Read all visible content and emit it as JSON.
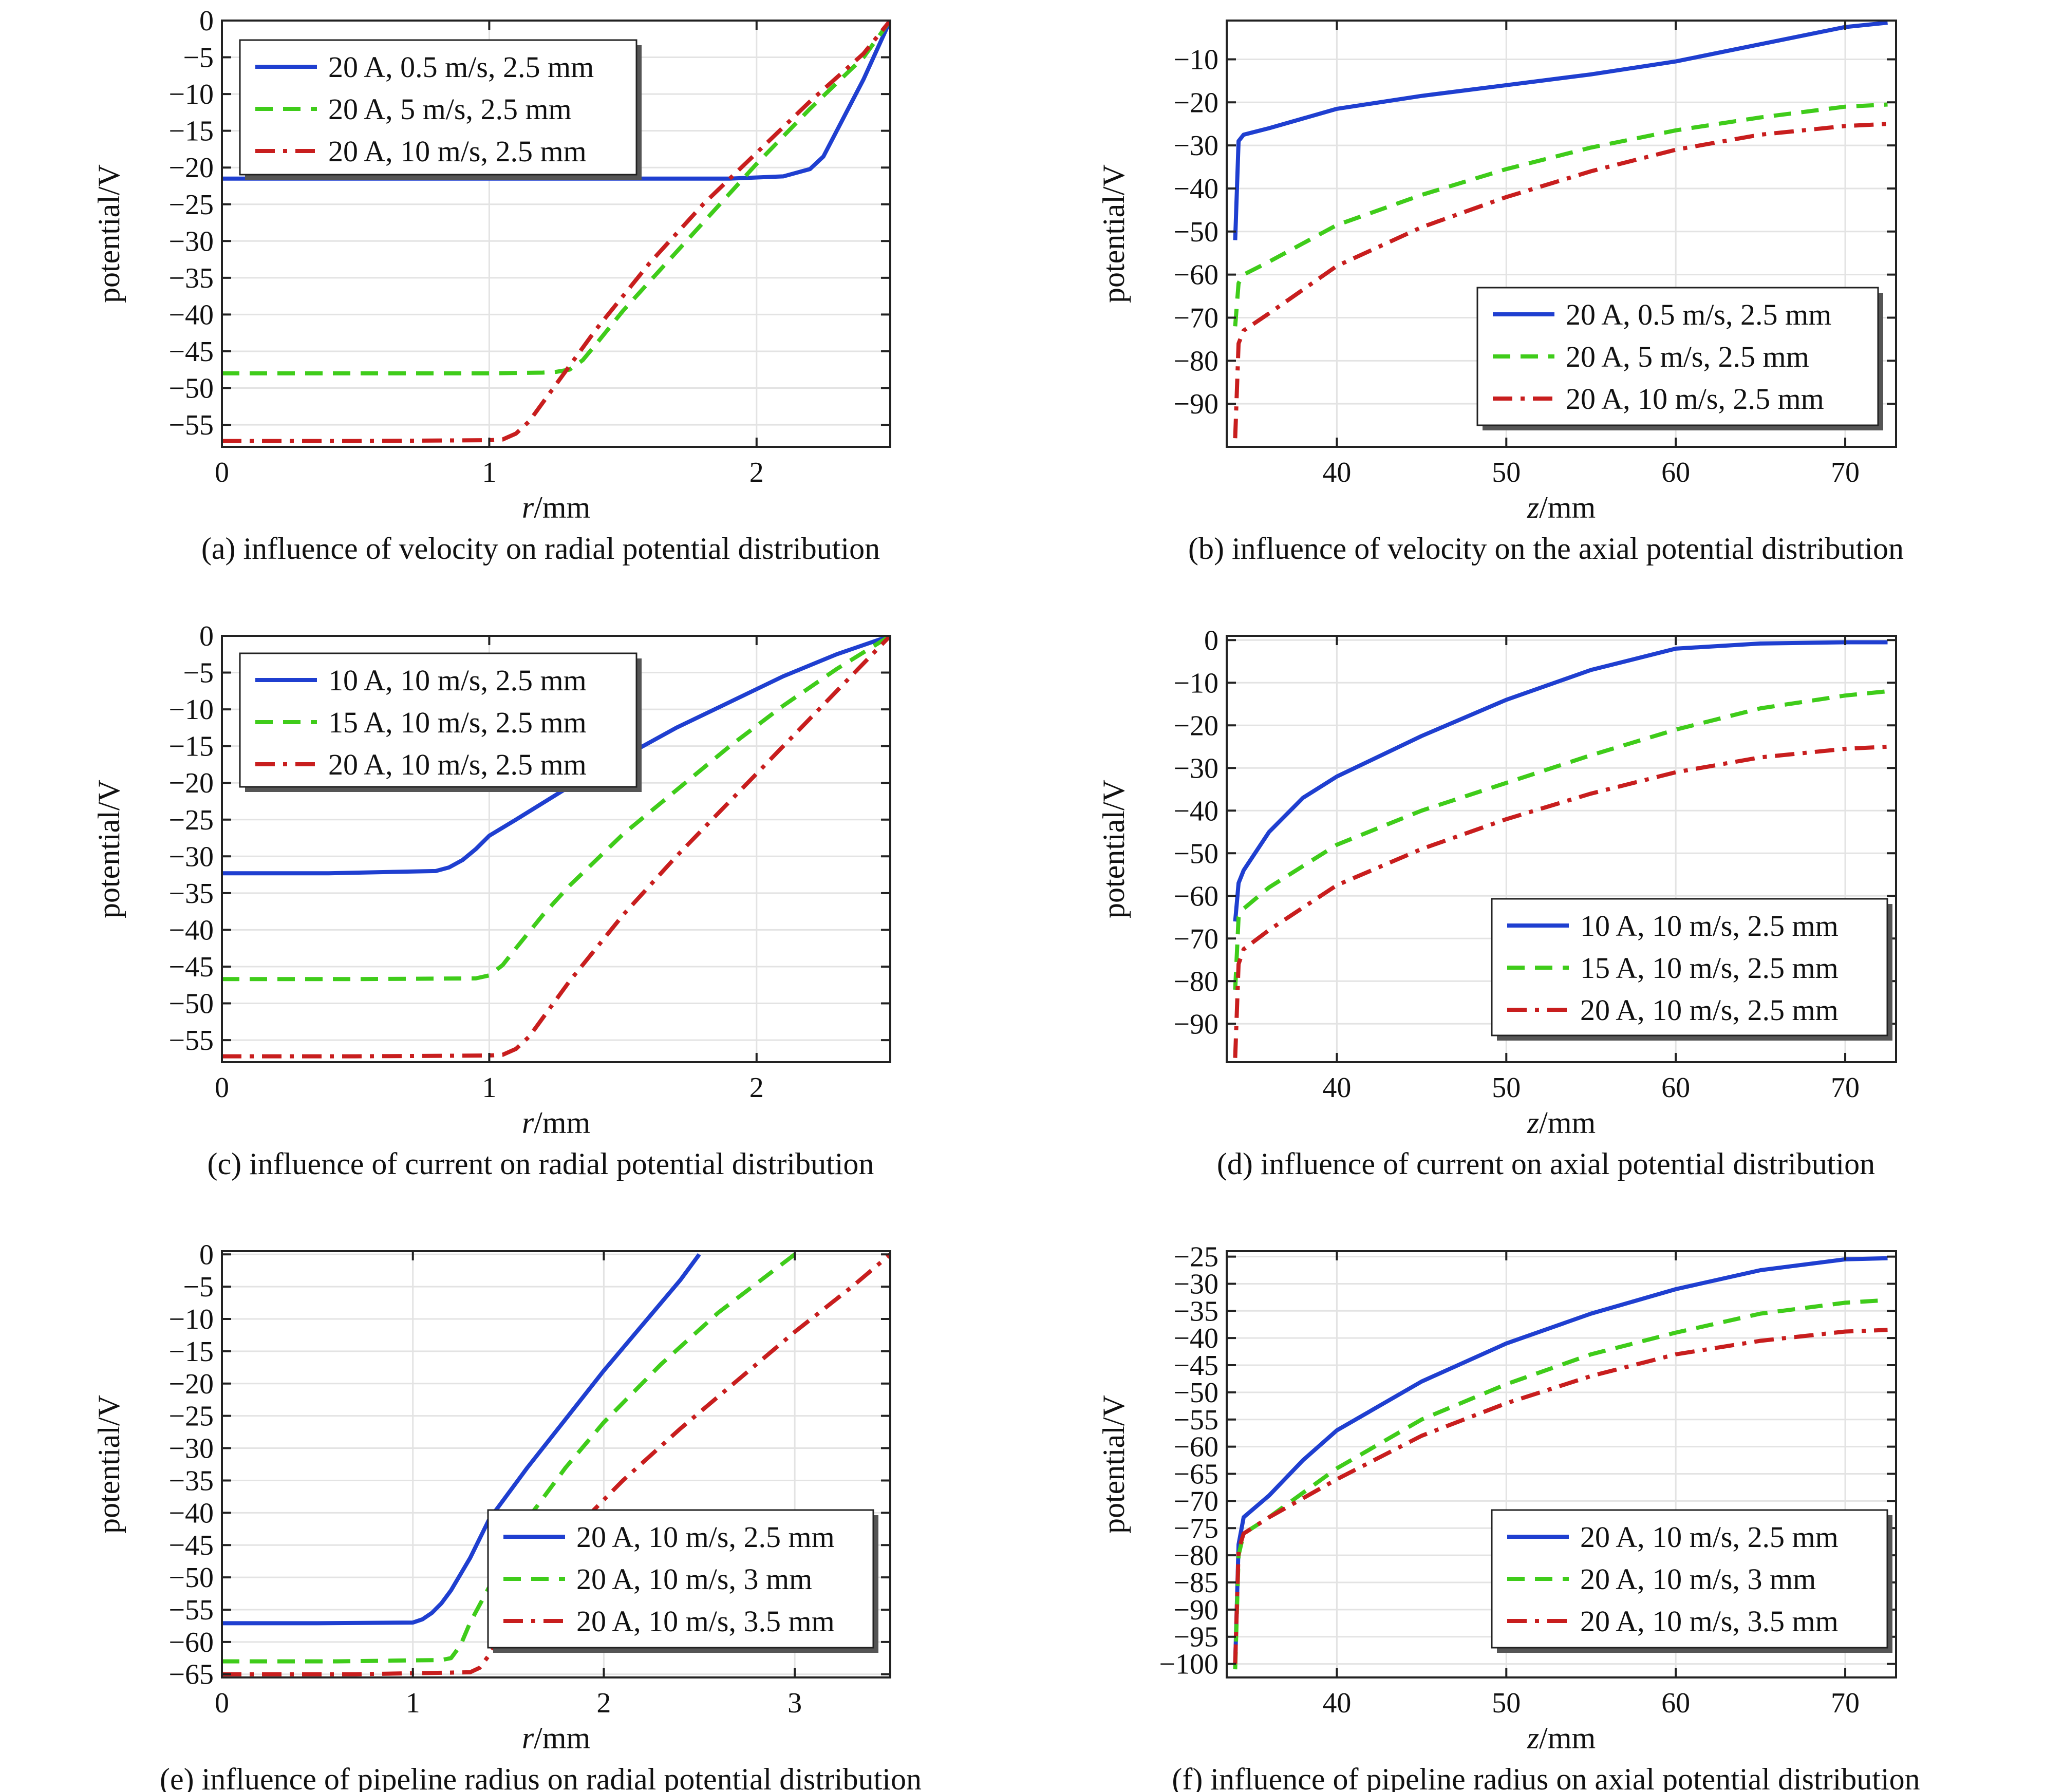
{
  "chart_data": [
    {
      "type": "line",
      "caption": "(a) influence of velocity on radial potential distribution",
      "xlabel_var": "r",
      "xlabel_unit": "/mm",
      "ylabel": "potential/V",
      "xlim": [
        0,
        2.5
      ],
      "ylim": [
        -58,
        0
      ],
      "xticks": [
        0,
        1,
        2
      ],
      "yticks": [
        0,
        -5,
        -10,
        -15,
        -20,
        -25,
        -30,
        -35,
        -40,
        -45,
        -50,
        -55
      ],
      "grid": true,
      "legend_position": "top-left",
      "series": [
        {
          "name": "20 A, 0.5 m/s, 2.5 mm",
          "color": "#1f3fd0",
          "dash": "solid",
          "x": [
            0,
            0.5,
            1.0,
            1.5,
            1.9,
            2.1,
            2.2,
            2.25,
            2.3,
            2.35,
            2.4,
            2.45,
            2.5
          ],
          "y": [
            -21.5,
            -21.5,
            -21.5,
            -21.5,
            -21.5,
            -21.2,
            -20.2,
            -18.5,
            -15,
            -11.5,
            -8,
            -4,
            0
          ]
        },
        {
          "name": "20 A, 5 m/s, 2.5 mm",
          "color": "#3fcc1a",
          "dash": "dashed",
          "x": [
            0,
            0.5,
            1.0,
            1.2,
            1.25,
            1.3,
            1.35,
            1.4,
            1.5,
            1.6,
            1.8,
            2.0,
            2.2,
            2.4,
            2.5
          ],
          "y": [
            -48,
            -48,
            -48,
            -47.9,
            -47.8,
            -47.5,
            -46.2,
            -44,
            -39.5,
            -35.5,
            -27.5,
            -19.5,
            -12,
            -5,
            0
          ]
        },
        {
          "name": "20 A, 10 m/s, 2.5 mm",
          "color": "#c81e1e",
          "dash": "dashdot",
          "x": [
            0,
            0.5,
            1.0,
            1.05,
            1.1,
            1.15,
            1.2,
            1.3,
            1.4,
            1.6,
            1.8,
            2.0,
            2.2,
            2.4,
            2.5
          ],
          "y": [
            -57.2,
            -57.2,
            -57.1,
            -57,
            -56.2,
            -54.5,
            -52,
            -47,
            -42,
            -33,
            -25,
            -18,
            -11,
            -4.5,
            0
          ]
        }
      ]
    },
    {
      "type": "line",
      "caption": "(b) influence of velocity on the axial potential distribution",
      "xlabel_var": "z",
      "xlabel_unit": "/mm",
      "ylabel": "potential/V",
      "xlim": [
        33.5,
        73
      ],
      "ylim": [
        -100,
        -1
      ],
      "xticks": [
        40,
        50,
        60,
        70
      ],
      "yticks": [
        -10,
        -20,
        -30,
        -40,
        -50,
        -60,
        -70,
        -80,
        -90
      ],
      "grid": true,
      "legend_position": "bottom-right",
      "series": [
        {
          "name": "20 A, 0.5 m/s, 2.5 mm",
          "color": "#1f3fd0",
          "dash": "solid",
          "x": [
            34,
            34.2,
            34.5,
            36,
            40,
            45,
            50,
            55,
            60,
            65,
            70,
            72.5
          ],
          "y": [
            -52,
            -29,
            -27.5,
            -26,
            -21.5,
            -18.5,
            -16,
            -13.5,
            -10.5,
            -6.5,
            -2.5,
            -1.5
          ]
        },
        {
          "name": "20 A, 5 m/s, 2.5 mm",
          "color": "#3fcc1a",
          "dash": "dashed",
          "x": [
            34,
            34.2,
            34.5,
            36,
            40,
            45,
            50,
            55,
            60,
            65,
            70,
            72.5
          ],
          "y": [
            -72,
            -62,
            -60,
            -57,
            -48.5,
            -41.5,
            -35.5,
            -30.5,
            -26.5,
            -23.5,
            -21,
            -20.5
          ]
        },
        {
          "name": "20 A, 10 m/s, 2.5 mm",
          "color": "#c81e1e",
          "dash": "dashdot",
          "x": [
            34,
            34.2,
            34.5,
            36,
            40,
            45,
            50,
            55,
            60,
            65,
            70,
            72.5
          ],
          "y": [
            -98,
            -76,
            -73,
            -69,
            -58,
            -49,
            -42,
            -36,
            -31,
            -27.5,
            -25.5,
            -25
          ]
        }
      ]
    },
    {
      "type": "line",
      "caption": "(c) influence of current on radial potential distribution",
      "xlabel_var": "r",
      "xlabel_unit": "/mm",
      "ylabel": "potential/V",
      "xlim": [
        0,
        2.5
      ],
      "ylim": [
        -58,
        0
      ],
      "xticks": [
        0,
        1,
        2
      ],
      "yticks": [
        0,
        -5,
        -10,
        -15,
        -20,
        -25,
        -30,
        -35,
        -40,
        -45,
        -50,
        -55
      ],
      "grid": true,
      "legend_position": "top-left",
      "series": [
        {
          "name": "10 A, 10 m/s, 2.5 mm",
          "color": "#1f3fd0",
          "dash": "solid",
          "x": [
            0,
            0.4,
            0.8,
            0.85,
            0.9,
            0.95,
            1.0,
            1.1,
            1.3,
            1.5,
            1.7,
            1.9,
            2.1,
            2.3,
            2.5
          ],
          "y": [
            -32.3,
            -32.3,
            -32,
            -31.5,
            -30.5,
            -29,
            -27.2,
            -25,
            -20.5,
            -16.5,
            -12.5,
            -9,
            -5.5,
            -2.5,
            0
          ]
        },
        {
          "name": "15 A, 10 m/s, 2.5 mm",
          "color": "#3fcc1a",
          "dash": "dashed",
          "x": [
            0,
            0.5,
            0.95,
            1.0,
            1.05,
            1.1,
            1.2,
            1.3,
            1.5,
            1.7,
            1.9,
            2.1,
            2.3,
            2.5
          ],
          "y": [
            -46.7,
            -46.7,
            -46.6,
            -46.2,
            -44.8,
            -42.5,
            -38,
            -34,
            -27,
            -21,
            -15,
            -9.5,
            -4.5,
            0
          ]
        },
        {
          "name": "20 A, 10 m/s, 2.5 mm",
          "color": "#c81e1e",
          "dash": "dashdot",
          "x": [
            0,
            0.5,
            1.0,
            1.05,
            1.1,
            1.15,
            1.2,
            1.3,
            1.5,
            1.7,
            1.9,
            2.1,
            2.3,
            2.5
          ],
          "y": [
            -57.2,
            -57.2,
            -57.1,
            -57,
            -56.2,
            -54.5,
            -52,
            -47,
            -38,
            -30,
            -22.5,
            -15,
            -7.5,
            0
          ]
        }
      ]
    },
    {
      "type": "line",
      "caption": "(d) influence of current on axial potential distribution",
      "xlabel_var": "z",
      "xlabel_unit": "/mm",
      "ylabel": "potential/V",
      "xlim": [
        33.5,
        73
      ],
      "ylim": [
        -99,
        1
      ],
      "xticks": [
        40,
        50,
        60,
        70
      ],
      "yticks": [
        0,
        -10,
        -20,
        -30,
        -40,
        -50,
        -60,
        -70,
        -80,
        -90
      ],
      "grid": true,
      "legend_position": "bottom-right",
      "series": [
        {
          "name": "10 A, 10 m/s, 2.5 mm",
          "color": "#1f3fd0",
          "dash": "solid",
          "x": [
            34,
            34.2,
            34.5,
            36,
            38,
            40,
            45,
            50,
            55,
            60,
            65,
            70,
            72.5
          ],
          "y": [
            -66,
            -57,
            -54,
            -45,
            -37,
            -32,
            -22.5,
            -14,
            -7,
            -2,
            -0.8,
            -0.5,
            -0.5
          ]
        },
        {
          "name": "15 A, 10 m/s, 2.5 mm",
          "color": "#3fcc1a",
          "dash": "dashed",
          "x": [
            34,
            34.2,
            34.5,
            36,
            40,
            45,
            50,
            55,
            60,
            65,
            70,
            72.5
          ],
          "y": [
            -82,
            -65,
            -63,
            -58,
            -48,
            -40,
            -33.5,
            -27,
            -21,
            -16,
            -13,
            -12
          ]
        },
        {
          "name": "20 A, 10 m/s, 2.5 mm",
          "color": "#c81e1e",
          "dash": "dashdot",
          "x": [
            34,
            34.2,
            34.5,
            36,
            40,
            45,
            50,
            55,
            60,
            65,
            70,
            72.5
          ],
          "y": [
            -98,
            -76,
            -72.5,
            -68,
            -57.5,
            -49,
            -42,
            -36,
            -31,
            -27.5,
            -25.5,
            -25
          ]
        }
      ]
    },
    {
      "type": "line",
      "caption": "(e) influence of pipeline radius on radial potential distribution",
      "xlabel_var": "r",
      "xlabel_unit": "/mm",
      "ylabel": "potential/V",
      "xlim": [
        0,
        3.5
      ],
      "ylim": [
        -65.5,
        0.5
      ],
      "xticks": [
        0,
        1,
        2,
        3
      ],
      "yticks": [
        0,
        -5,
        -10,
        -15,
        -20,
        -25,
        -30,
        -35,
        -40,
        -45,
        -50,
        -55,
        -60,
        -65
      ],
      "grid": true,
      "legend_position": "bottom-right",
      "series": [
        {
          "name": "20 A, 10 m/s, 2.5 mm",
          "color": "#1f3fd0",
          "dash": "solid",
          "x": [
            0,
            0.5,
            1.0,
            1.05,
            1.1,
            1.15,
            1.2,
            1.3,
            1.4,
            1.6,
            1.8,
            2.0,
            2.2,
            2.4,
            2.5
          ],
          "y": [
            -57.1,
            -57.1,
            -57,
            -56.5,
            -55.5,
            -54,
            -52,
            -47,
            -41,
            -33,
            -25.5,
            -18,
            -11,
            -4,
            0
          ]
        },
        {
          "name": "20 A, 10 m/s, 3 mm",
          "color": "#3fcc1a",
          "dash": "dashed",
          "x": [
            0,
            0.6,
            1.15,
            1.2,
            1.25,
            1.3,
            1.4,
            1.6,
            1.8,
            2.0,
            2.3,
            2.6,
            2.8,
            3.0
          ],
          "y": [
            -63,
            -63,
            -62.8,
            -62.5,
            -60.5,
            -57,
            -51.5,
            -41,
            -33,
            -26,
            -17,
            -9,
            -4.5,
            0
          ]
        },
        {
          "name": "20 A, 10 m/s, 3.5 mm",
          "color": "#c81e1e",
          "dash": "dashdot",
          "x": [
            0,
            0.7,
            1.3,
            1.35,
            1.4,
            1.5,
            1.7,
            1.9,
            2.1,
            2.4,
            2.7,
            3.0,
            3.3,
            3.5
          ],
          "y": [
            -65,
            -65,
            -64.7,
            -64,
            -62,
            -57,
            -48,
            -41,
            -35,
            -27,
            -19.5,
            -12,
            -5,
            0
          ]
        }
      ]
    },
    {
      "type": "line",
      "caption": "(f) influence of pipeline radius on axial potential distribution",
      "xlabel_var": "z",
      "xlabel_unit": "/mm",
      "ylabel": "potential/V",
      "xlim": [
        33.5,
        73
      ],
      "ylim": [
        -102.5,
        -24
      ],
      "xticks": [
        40,
        50,
        60,
        70
      ],
      "yticks": [
        -25,
        -30,
        -35,
        -40,
        -45,
        -50,
        -55,
        -60,
        -65,
        -70,
        -75,
        -80,
        -85,
        -90,
        -95,
        -100
      ],
      "grid": true,
      "legend_position": "bottom-right",
      "series": [
        {
          "name": "20 A, 10 m/s, 2.5 mm",
          "color": "#1f3fd0",
          "dash": "solid",
          "x": [
            34,
            34.2,
            34.5,
            36,
            38,
            40,
            45,
            50,
            55,
            60,
            65,
            70,
            72.5
          ],
          "y": [
            -100,
            -78,
            -73,
            -69,
            -62.5,
            -57,
            -48,
            -41,
            -35.5,
            -31,
            -27.5,
            -25.5,
            -25.3
          ]
        },
        {
          "name": "20 A, 10 m/s, 3 mm",
          "color": "#3fcc1a",
          "dash": "dashed",
          "x": [
            34,
            34.2,
            34.5,
            36,
            40,
            45,
            50,
            55,
            60,
            65,
            70,
            72.5
          ],
          "y": [
            -101,
            -80,
            -76,
            -73,
            -64,
            -55,
            -48.5,
            -43,
            -39,
            -35.5,
            -33.5,
            -33
          ]
        },
        {
          "name": "20 A, 10 m/s, 3.5 mm",
          "color": "#c81e1e",
          "dash": "dashdot",
          "x": [
            34,
            34.2,
            34.5,
            36,
            40,
            45,
            50,
            55,
            60,
            65,
            70,
            72.5
          ],
          "y": [
            -100,
            -79,
            -76,
            -73,
            -66,
            -58,
            -52,
            -47,
            -43,
            -40.5,
            -38.8,
            -38.5
          ]
        }
      ]
    }
  ]
}
